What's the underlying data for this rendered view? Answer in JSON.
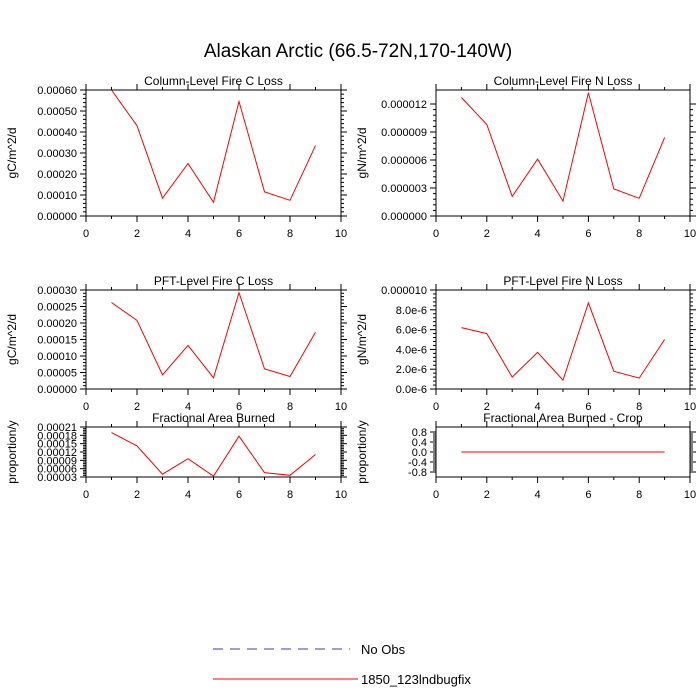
{
  "figure": {
    "title": "Alaskan Arctic (66.5-72N,170-140W)",
    "legend": [
      {
        "label": "No Obs",
        "color": "#3b3bb0",
        "style": "dashed"
      },
      {
        "label": "1850_123lndbugfix",
        "color": "#ff0000",
        "style": "solid"
      }
    ]
  },
  "chart_data": [
    {
      "type": "line",
      "title": "Column-Level Fire C Loss",
      "ylabel": "gC/m^2/d",
      "xlim": [
        0,
        10
      ],
      "xticks": [
        "0",
        "2",
        "4",
        "6",
        "8",
        "10"
      ],
      "ylim": [
        0,
        0.0006
      ],
      "yticks": [
        {
          "v": 0,
          "label": "0.00000"
        },
        {
          "v": 0.0001,
          "label": "0.00010"
        },
        {
          "v": 0.0002,
          "label": "0.00020"
        },
        {
          "v": 0.0003,
          "label": "0.00030"
        },
        {
          "v": 0.0004,
          "label": "0.00040"
        },
        {
          "v": 0.0005,
          "label": "0.00050"
        },
        {
          "v": 0.0006,
          "label": "0.00060"
        }
      ],
      "series": [
        {
          "name": "1850_123lndbugfix",
          "color": "#ff0000",
          "x": [
            1,
            2,
            3,
            4,
            5,
            6,
            7,
            8,
            9
          ],
          "y": [
            0.0006,
            0.00043,
            8.5e-05,
            0.00025,
            6.5e-05,
            0.000545,
            0.000115,
            7.5e-05,
            0.000335
          ]
        }
      ]
    },
    {
      "type": "line",
      "title": "Column-Level Fire N Loss",
      "ylabel": "gN/m^2/d",
      "xlim": [
        0,
        10
      ],
      "xticks": [
        "0",
        "2",
        "4",
        "6",
        "8",
        "10"
      ],
      "ylim": [
        0,
        1.35e-05
      ],
      "yticks": [
        {
          "v": 0,
          "label": "0.000000"
        },
        {
          "v": 3e-06,
          "label": "0.000003"
        },
        {
          "v": 6e-06,
          "label": "0.000006"
        },
        {
          "v": 9e-06,
          "label": "0.000009"
        },
        {
          "v": 1.2e-05,
          "label": "0.000012"
        }
      ],
      "series": [
        {
          "name": "1850_123lndbugfix",
          "color": "#ff0000",
          "x": [
            1,
            2,
            3,
            4,
            5,
            6,
            7,
            8,
            9
          ],
          "y": [
            1.27e-05,
            9.8e-06,
            2.1e-06,
            6.1e-06,
            1.6e-06,
            1.32e-05,
            2.9e-06,
            1.9e-06,
            8.4e-06
          ]
        }
      ]
    },
    {
      "type": "line",
      "title": "PFT-Level Fire C Loss",
      "ylabel": "gC/m^2/d",
      "xlim": [
        0,
        10
      ],
      "xticks": [
        "0",
        "2",
        "4",
        "6",
        "8",
        "10"
      ],
      "ylim": [
        0,
        0.0003
      ],
      "yticks": [
        {
          "v": 0,
          "label": "0.00000"
        },
        {
          "v": 5e-05,
          "label": "0.00005"
        },
        {
          "v": 0.0001,
          "label": "0.00010"
        },
        {
          "v": 0.00015,
          "label": "0.00015"
        },
        {
          "v": 0.0002,
          "label": "0.00020"
        },
        {
          "v": 0.00025,
          "label": "0.00025"
        },
        {
          "v": 0.0003,
          "label": "0.00030"
        }
      ],
      "series": [
        {
          "name": "1850_123lndbugfix",
          "color": "#ff0000",
          "x": [
            1,
            2,
            3,
            4,
            5,
            6,
            7,
            8,
            9
          ],
          "y": [
            0.000262,
            0.000208,
            4.3e-05,
            0.000132,
            3.4e-05,
            0.000292,
            6.1e-05,
            3.8e-05,
            0.000172
          ]
        }
      ]
    },
    {
      "type": "line",
      "title": "PFT-Level Fire N Loss",
      "ylabel": "gN/m^2/d",
      "xlim": [
        0,
        10
      ],
      "xticks": [
        "0",
        "2",
        "4",
        "6",
        "8",
        "10"
      ],
      "ylim": [
        0,
        1e-05
      ],
      "yticks": [
        {
          "v": 0,
          "label": "0.0e-6"
        },
        {
          "v": 2e-06,
          "label": "2.0e-6"
        },
        {
          "v": 4e-06,
          "label": "4.0e-6"
        },
        {
          "v": 6e-06,
          "label": "6.0e-6"
        },
        {
          "v": 8e-06,
          "label": "8.0e-6"
        },
        {
          "v": 1e-05,
          "label": "0.000010"
        }
      ],
      "series": [
        {
          "name": "1850_123lndbugfix",
          "color": "#ff0000",
          "x": [
            1,
            2,
            3,
            4,
            5,
            6,
            7,
            8,
            9
          ],
          "y": [
            6.2e-06,
            5.6e-06,
            1.2e-06,
            3.7e-06,
            9e-07,
            8.7e-06,
            1.8e-06,
            1.1e-06,
            5e-06
          ]
        }
      ]
    },
    {
      "type": "line",
      "title": "Fractional Area Burned",
      "ylabel": "proportion/y",
      "xlim": [
        0,
        10
      ],
      "xticks": [
        "0",
        "2",
        "4",
        "6",
        "8",
        "10"
      ],
      "ylim": [
        3e-05,
        0.00021
      ],
      "yticks": [
        {
          "v": 3e-05,
          "label": "0.00003"
        },
        {
          "v": 6e-05,
          "label": "0.00006"
        },
        {
          "v": 9e-05,
          "label": "0.00009"
        },
        {
          "v": 0.00012,
          "label": "0.00012"
        },
        {
          "v": 0.00015,
          "label": "0.00015"
        },
        {
          "v": 0.00018,
          "label": "0.00018"
        },
        {
          "v": 0.00021,
          "label": "0.00021"
        }
      ],
      "series": [
        {
          "name": "1850_123lndbugfix",
          "color": "#ff0000",
          "x": [
            1,
            2,
            3,
            4,
            5,
            6,
            7,
            8,
            9
          ],
          "y": [
            0.00019,
            0.000142,
            4e-05,
            9.6e-05,
            3.3e-05,
            0.000177,
            4.6e-05,
            3.6e-05,
            0.000111
          ]
        }
      ]
    },
    {
      "type": "line",
      "title": "Fractional Area Burned - Crop",
      "ylabel": "proportion/y",
      "xlim": [
        0,
        10
      ],
      "xticks": [
        "0",
        "2",
        "4",
        "6",
        "8",
        "10"
      ],
      "ylim": [
        -1,
        1
      ],
      "yticks": [
        {
          "v": -0.8,
          "label": "-0.8"
        },
        {
          "v": -0.4,
          "label": "-0.4"
        },
        {
          "v": 0,
          "label": "0.0"
        },
        {
          "v": 0.4,
          "label": "0.4"
        },
        {
          "v": 0.8,
          "label": "0.8"
        }
      ],
      "series": [
        {
          "name": "1850_123lndbugfix",
          "color": "#ff0000",
          "x": [
            1,
            2,
            3,
            4,
            5,
            6,
            7,
            8,
            9
          ],
          "y": [
            0,
            0,
            0,
            0,
            0,
            0,
            0,
            0,
            0
          ]
        }
      ]
    }
  ]
}
